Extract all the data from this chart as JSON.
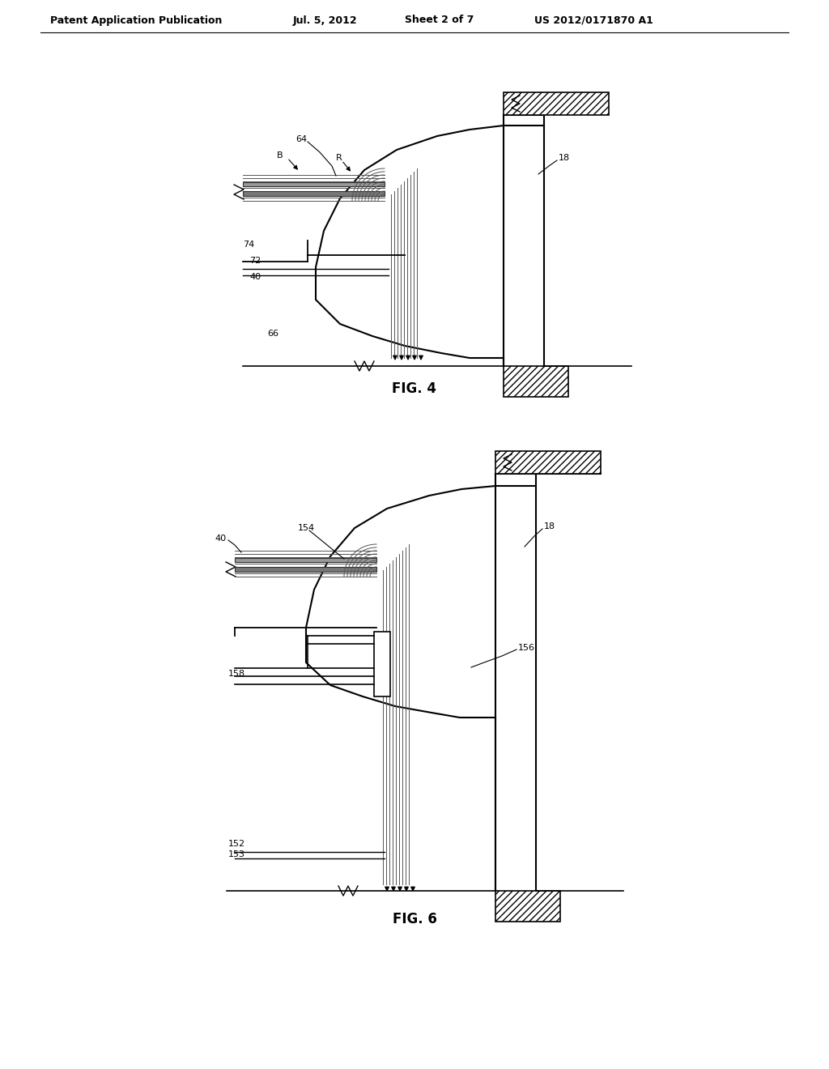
{
  "title": "Patent Application Publication",
  "date": "Jul. 5, 2012",
  "sheet": "Sheet 2 of 7",
  "patent_num": "US 2012/0171870 A1",
  "fig4_label": "FIG. 4",
  "fig6_label": "FIG. 6",
  "bg_color": "#ffffff"
}
